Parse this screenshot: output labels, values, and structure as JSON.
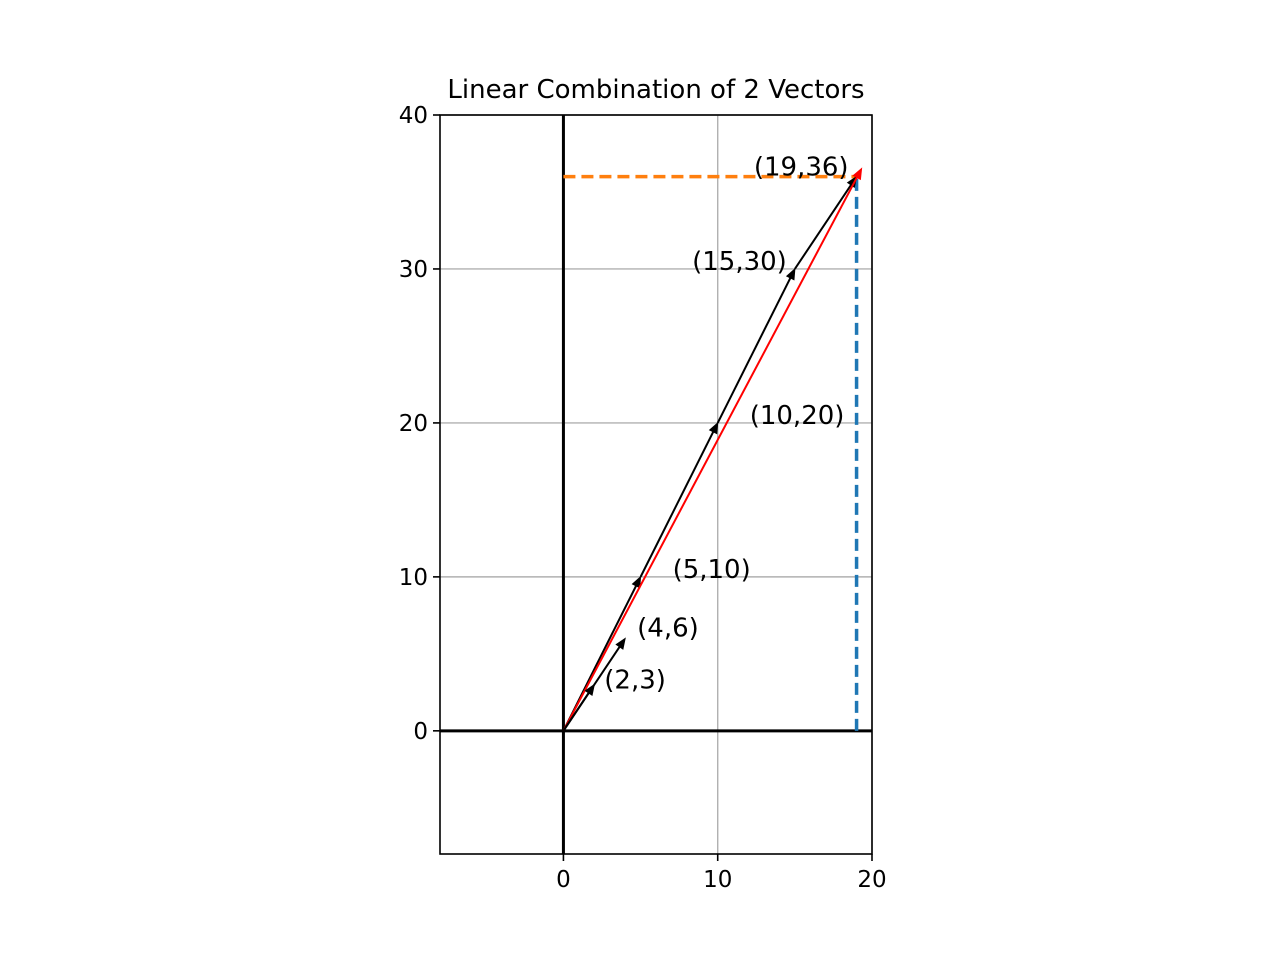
{
  "chart_data": {
    "type": "line",
    "title": "Linear Combination of 2 Vectors",
    "xlabel": "",
    "ylabel": "",
    "xlim": [
      -8,
      20
    ],
    "ylim": [
      -8,
      40
    ],
    "x_ticks": [
      0,
      10,
      20
    ],
    "y_ticks": [
      0,
      10,
      20,
      30,
      40
    ],
    "grid": true,
    "colors": {
      "vector": "#000000",
      "sum": "#ff0000",
      "horizontal_guide": "#ff7f0e",
      "vertical_guide": "#1f77b4",
      "grid": "#b0b0b0"
    },
    "vectors": [
      {
        "from": [
          0,
          0
        ],
        "to": [
          2,
          3
        ],
        "label": "(2,3)"
      },
      {
        "from": [
          0,
          0
        ],
        "to": [
          4,
          6
        ],
        "label": "(4,6)"
      }
    ],
    "chain": {
      "points": [
        [
          0,
          0
        ],
        [
          5,
          10
        ],
        [
          10,
          20
        ],
        [
          15,
          30
        ],
        [
          19,
          36
        ]
      ],
      "labels": [
        "(5,10)",
        "(10,20)",
        "(15,30)",
        "(19,36)"
      ]
    },
    "result": {
      "from": [
        0,
        0
      ],
      "to": [
        19,
        36
      ]
    },
    "guides": {
      "horizontal": {
        "from": [
          0,
          36
        ],
        "to": [
          19,
          36
        ]
      },
      "vertical": {
        "from": [
          19,
          0
        ],
        "to": [
          19,
          36
        ]
      }
    }
  }
}
